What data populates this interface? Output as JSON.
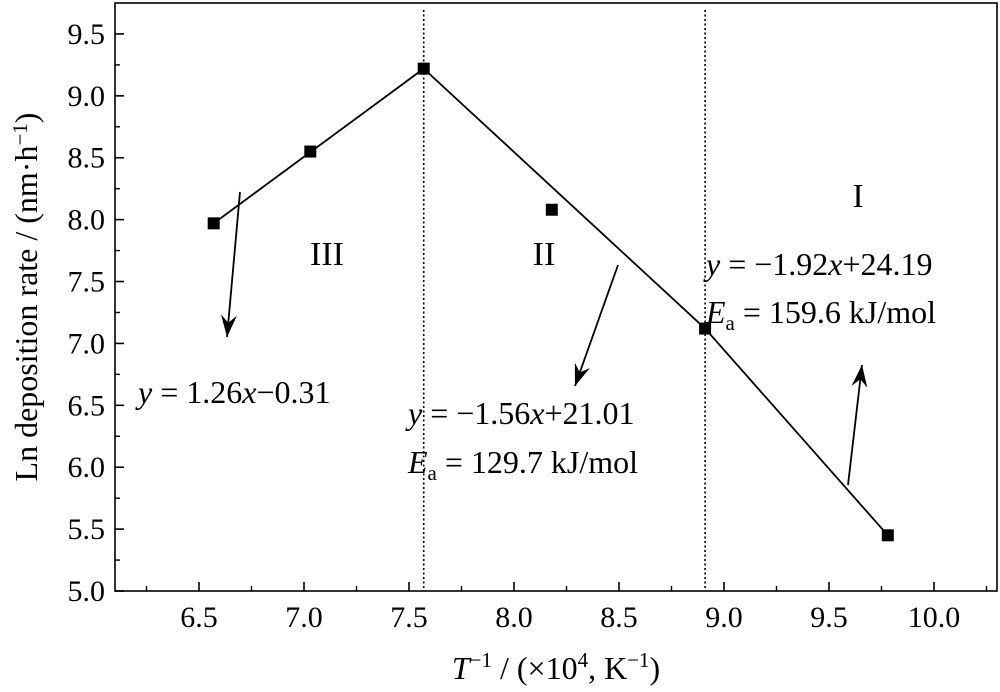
{
  "chart_data": {
    "type": "line",
    "xlabel": {
      "prefix": "T",
      "sup": "−1",
      "suffix": " / (×10",
      "sup2": "4",
      "suffix2": ", K",
      "sup3": "−1",
      "end": ")"
    },
    "ylabel": {
      "text": "Ln deposition rate / (nm·h",
      "sup": "−1",
      "end": ")"
    },
    "xlim": [
      6.1,
      10.3
    ],
    "ylim": [
      5.0,
      9.75
    ],
    "x_ticks": [
      "6.5",
      "7.0",
      "7.5",
      "8.0",
      "8.5",
      "9.0",
      "9.5",
      "10.0"
    ],
    "y_ticks": [
      "5.0",
      "5.5",
      "6.0",
      "6.5",
      "7.0",
      "7.5",
      "8.0",
      "8.5",
      "9.0",
      "9.5"
    ],
    "points": [
      {
        "x": 6.57,
        "y": 7.97
      },
      {
        "x": 7.03,
        "y": 8.55
      },
      {
        "x": 7.57,
        "y": 9.22
      },
      {
        "x": 8.18,
        "y": 8.08
      },
      {
        "x": 8.91,
        "y": 7.12
      },
      {
        "x": 9.78,
        "y": 5.45
      }
    ],
    "fit_lines": [
      {
        "x": [
          6.57,
          7.57
        ],
        "y": [
          7.97,
          9.22
        ]
      },
      {
        "x": [
          7.57,
          8.91
        ],
        "y": [
          9.22,
          7.12
        ]
      },
      {
        "x": [
          8.91,
          9.78
        ],
        "y": [
          7.12,
          5.45
        ]
      }
    ],
    "vlines": [
      7.57,
      8.91
    ],
    "regions": [
      {
        "label": "III",
        "x": 7.23,
        "y": 7.75
      },
      {
        "label": "II",
        "x": 8.22,
        "y": 7.75
      },
      {
        "label": "I",
        "x": 9.78,
        "y": 8.18
      }
    ],
    "annotations": [
      {
        "id": "fit-iii",
        "lines": [
          {
            "var": "y",
            "text": " = 1.26",
            "var2": "x",
            "text2": "−0.31"
          }
        ]
      },
      {
        "id": "fit-ii",
        "lines": [
          {
            "var": "y",
            "text": " = −1.56",
            "var2": "x",
            "text2": "+21.01"
          },
          {
            "var": "E",
            "sub": "a",
            "text": " = 129.7 kJ/mol"
          }
        ]
      },
      {
        "id": "fit-i",
        "lines": [
          {
            "var": "y",
            "text": " = −1.92",
            "var2": "x",
            "text2": "+24.19"
          },
          {
            "var": "E",
            "sub": "a",
            "text": " = 159.6 kJ/mol"
          }
        ]
      }
    ]
  }
}
